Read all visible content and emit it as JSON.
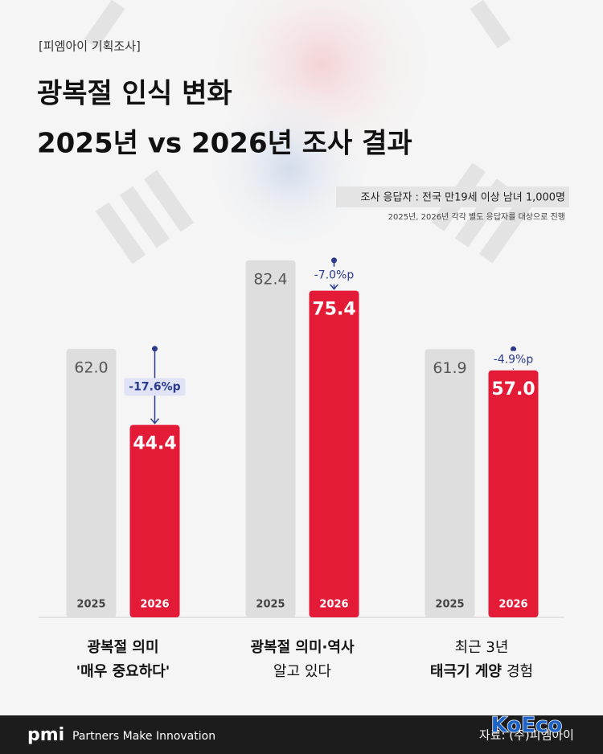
{
  "chart_data": {
    "type": "bar",
    "tag": "[피엠아이 기획조사]",
    "title": [
      "광복절 인식 변화",
      "2025년 vs 2026년 조사 결과"
    ],
    "respondents": "조사 응답자 : 전국 만19세 이상 남녀 1,000명",
    "note": "2025년, 2026년 각각 별도 응답자를 대상으로 진행",
    "categories": [
      [
        [
          {
            "text": "광복절 의미",
            "bold": true
          }
        ],
        [
          {
            "text": "'매우 중요하다'",
            "bold": true
          }
        ]
      ],
      [
        [
          {
            "text": "광복절 의미·역사",
            "bold": true
          }
        ],
        [
          {
            "text": "알고 있다",
            "bold": false
          }
        ]
      ],
      [
        [
          {
            "text": "최근 3년",
            "bold": false
          }
        ],
        [
          {
            "text": "태극기 게양",
            "bold": true
          },
          {
            "text": "경험",
            "bold": false
          }
        ]
      ]
    ],
    "series": [
      {
        "name": "2025",
        "color": "#dedede",
        "values": [
          62.0,
          82.4,
          61.9
        ],
        "value_labels": [
          "62.0",
          "82.4",
          "61.9"
        ]
      },
      {
        "name": "2026",
        "color": "#e31b37",
        "values": [
          44.4,
          75.4,
          57.0
        ],
        "value_labels": [
          "44.4",
          "75.4",
          "57.0"
        ]
      }
    ],
    "differences": {
      "values": [
        -17.6,
        -7.0,
        -4.9
      ],
      "value_labels": [
        "-17.6%p",
        "-7.0%p",
        "-4.9%p"
      ]
    },
    "ylim": [
      0,
      100
    ],
    "footer": {
      "brand": "pmi",
      "slogan": "Partners Make Innovation",
      "source": "자료: (주)피엠아이",
      "watermark": "KoEco"
    }
  }
}
